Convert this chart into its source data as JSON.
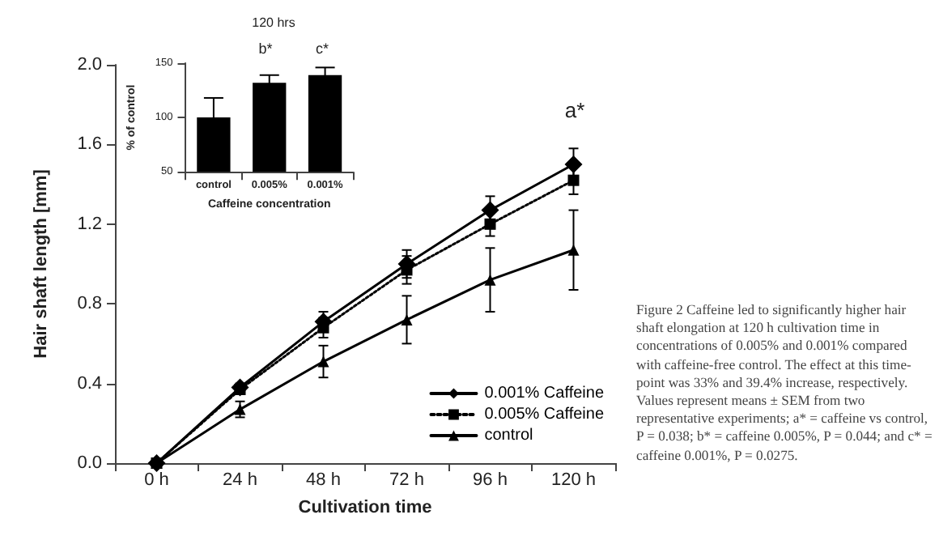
{
  "chart_data": [
    {
      "type": "line",
      "xlabel": "Cultivation time",
      "ylabel": "Hair shaft length [mm]",
      "categories": [
        "0 h",
        "24 h",
        "48 h",
        "72 h",
        "96 h",
        "120 h"
      ],
      "series": [
        {
          "name": "0.001% Caffeine",
          "color": "#000000",
          "marker": "diamond",
          "line_style": "solid",
          "values": [
            0,
            0.38,
            0.71,
            1.0,
            1.27,
            1.5
          ],
          "errors": [
            null,
            0.02,
            0.05,
            0.07,
            0.07,
            0.08
          ]
        },
        {
          "name": "0.005% Caffeine",
          "color": "#000000",
          "marker": "square",
          "line_style": "dotted",
          "values": [
            0,
            0.37,
            0.68,
            0.97,
            1.2,
            1.42
          ],
          "errors": [
            null,
            0.02,
            0.05,
            0.07,
            0.06,
            0.07
          ]
        },
        {
          "name": "control",
          "color": "#000000",
          "marker": "triangle",
          "line_style": "solid",
          "values": [
            0,
            0.27,
            0.51,
            0.72,
            0.92,
            1.07
          ],
          "errors": [
            null,
            0.04,
            0.08,
            0.12,
            0.16,
            0.2
          ]
        }
      ],
      "ylim": [
        0,
        2.0
      ],
      "yticks": [
        {
          "value": 0,
          "label": "0.0"
        },
        0.4,
        0.8,
        1.2,
        1.6,
        {
          "value": 2,
          "label": "2.0"
        }
      ],
      "grid": false,
      "legend": "bottom right",
      "annotations": [
        "a*",
        "Figure 2 Caffeine led to significantly higher hair shaft elongation at 120 h cultivation time in concentrations of 0.005% and 0.001% compared with caffeine-free control. The effect at this time-point was 33% and 39.4% increase, respectively. Values represent means ± SEM from two representative experiments; a* = caffeine vs control, P = 0.038; b* = caffeine 0.005%, P = 0.044; and c* = caffeine 0.001%, P = 0.0275."
      ]
    },
    {
      "type": "bar",
      "title": "120 hrs",
      "xlabel": "Caffeine concentration",
      "ylabel": "% of control",
      "categories": [
        "control",
        "0.005%",
        "0.001%"
      ],
      "values": [
        100,
        132,
        139
      ],
      "errors": [
        18,
        7,
        7
      ],
      "color": "#000000",
      "ylim": [
        50,
        150
      ],
      "yticks": [
        50,
        100,
        150
      ],
      "grid": false,
      "annotations": [
        "b*",
        "c*"
      ]
    }
  ]
}
